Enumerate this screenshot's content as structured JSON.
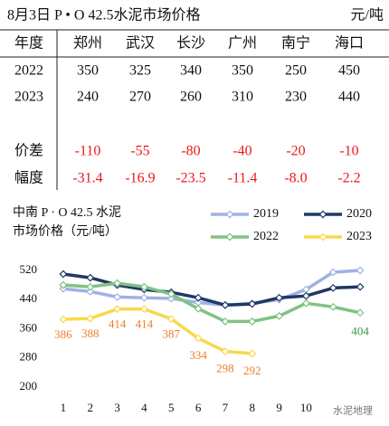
{
  "table": {
    "title": "8月3日 P • O 42.5水泥市场价格",
    "unit": "元/吨",
    "header": [
      "年度",
      "郑州",
      "武汉",
      "长沙",
      "广州",
      "南宁",
      "海口"
    ],
    "rows": [
      [
        "2022",
        "350",
        "325",
        "340",
        "350",
        "250",
        "450"
      ],
      [
        "2023",
        "240",
        "270",
        "260",
        "310",
        "230",
        "440"
      ],
      [
        "价差",
        "-110",
        "-55",
        "-80",
        "-40",
        "-20",
        "-10"
      ],
      [
        "幅度",
        "-31.4",
        "-16.9",
        "-23.5",
        "-11.4",
        "-8.0",
        "-2.2"
      ]
    ]
  },
  "chart_data": {
    "type": "line",
    "title": [
      "中南 P · O 42.5 水泥",
      "市场价格（元/吨）"
    ],
    "x": [
      1,
      2,
      3,
      4,
      5,
      6,
      7,
      8,
      9,
      10,
      11,
      12
    ],
    "xlim": [
      0.5,
      12.5
    ],
    "xticks": [
      1,
      2,
      3,
      4,
      5,
      6,
      7,
      8,
      9,
      10
    ],
    "ylim": [
      200,
      520
    ],
    "yticks": [
      200,
      280,
      360,
      440,
      520
    ],
    "legend": "top-right",
    "series": [
      {
        "name": "2019",
        "color": "#9fb2e3",
        "values": [
          470,
          462,
          447,
          445,
          443,
          432,
          425,
          430,
          440,
          468,
          515,
          520
        ]
      },
      {
        "name": "2020",
        "color": "#1f3864",
        "values": [
          510,
          500,
          480,
          468,
          460,
          445,
          425,
          428,
          445,
          450,
          472,
          475
        ]
      },
      {
        "name": "2022",
        "color": "#80c283",
        "values": [
          480,
          475,
          485,
          475,
          455,
          415,
          380,
          380,
          395,
          430,
          420,
          404
        ],
        "value_labels": [
          null,
          null,
          null,
          null,
          null,
          null,
          null,
          null,
          null,
          null,
          null,
          "404"
        ],
        "label_color": "#3a9a3e"
      },
      {
        "name": "2023",
        "color": "#f7d94c",
        "values": [
          386,
          388,
          414,
          414,
          387,
          334,
          298,
          292,
          null,
          null,
          null,
          null
        ],
        "value_labels": [
          "386",
          "388",
          "414",
          "414",
          "387",
          "334",
          "298",
          "292",
          null,
          null,
          null,
          null
        ],
        "label_color": "#f07c2a"
      }
    ],
    "watermark": "水泥地理"
  }
}
